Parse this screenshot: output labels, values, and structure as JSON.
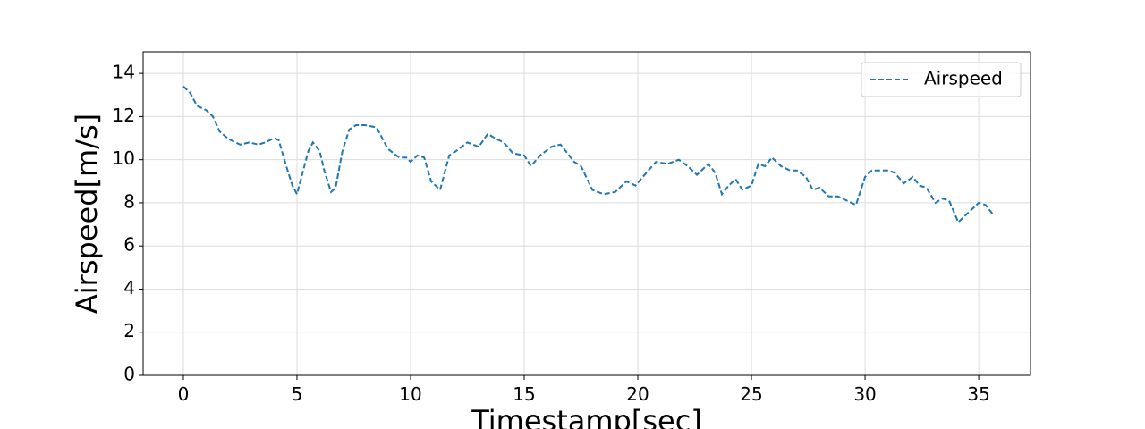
{
  "chart_data": {
    "type": "line",
    "x_label": "Timestamp[sec]",
    "y_label": "Airspeed[m/s]",
    "x": [
      0,
      0.3,
      0.6,
      1.0,
      1.3,
      1.6,
      2.0,
      2.5,
      2.9,
      3.3,
      3.6,
      4.0,
      4.2,
      4.5,
      4.8,
      5.0,
      5.2,
      5.5,
      5.7,
      6.0,
      6.2,
      6.5,
      6.7,
      7.0,
      7.3,
      7.6,
      8.0,
      8.5,
      9.0,
      9.5,
      9.8,
      10.0,
      10.3,
      10.6,
      10.9,
      11.3,
      11.7,
      12.0,
      12.5,
      13.0,
      13.4,
      13.7,
      14.1,
      14.5,
      15.0,
      15.3,
      15.7,
      16.2,
      16.6,
      17.2,
      17.5,
      18.0,
      18.5,
      19.0,
      19.5,
      19.9,
      20.3,
      20.8,
      21.3,
      21.8,
      22.2,
      22.6,
      23.1,
      23.4,
      23.7,
      24.0,
      24.3,
      24.6,
      25.0,
      25.3,
      25.6,
      25.9,
      26.3,
      26.7,
      27.0,
      27.4,
      27.7,
      28.0,
      28.4,
      28.8,
      29.2,
      29.6,
      30.0,
      30.3,
      30.7,
      31.0,
      31.3,
      31.7,
      32.1,
      32.4,
      32.7,
      33.1,
      33.4,
      33.7,
      34.1,
      34.5,
      35.0,
      35.3,
      35.6
    ],
    "series": [
      {
        "name": "Airspeed",
        "color": "#1f77b4",
        "line_style": "dashed",
        "values": [
          13.4,
          13.1,
          12.5,
          12.3,
          12.0,
          11.3,
          10.95,
          10.7,
          10.8,
          10.7,
          10.8,
          11.0,
          10.9,
          9.8,
          8.8,
          8.4,
          9.2,
          10.4,
          10.8,
          10.4,
          9.5,
          8.5,
          8.7,
          10.4,
          11.4,
          11.6,
          11.6,
          11.5,
          10.5,
          10.1,
          10.1,
          9.9,
          10.2,
          10.1,
          9.0,
          8.6,
          10.2,
          10.4,
          10.8,
          10.6,
          11.2,
          11.0,
          10.8,
          10.3,
          10.2,
          9.7,
          10.2,
          10.6,
          10.7,
          9.9,
          9.7,
          8.6,
          8.4,
          8.5,
          9.0,
          8.8,
          9.3,
          9.9,
          9.8,
          10.0,
          9.7,
          9.3,
          9.8,
          9.4,
          8.4,
          8.8,
          9.1,
          8.6,
          8.8,
          9.8,
          9.7,
          10.1,
          9.7,
          9.5,
          9.5,
          9.2,
          8.6,
          8.7,
          8.3,
          8.3,
          8.1,
          7.9,
          9.2,
          9.5,
          9.5,
          9.5,
          9.4,
          8.9,
          9.2,
          8.8,
          8.7,
          8.0,
          8.2,
          8.1,
          7.1,
          7.5,
          8.0,
          7.9,
          7.5
        ]
      }
    ],
    "xlim": [
      -1.77,
      37.28
    ],
    "xticks": [
      0,
      5,
      10,
      15,
      20,
      25,
      30,
      35
    ],
    "ylim": [
      0,
      15
    ],
    "yticks": [
      0,
      2,
      4,
      6,
      8,
      10,
      12,
      14
    ],
    "grid": true,
    "legend": "upper right"
  }
}
